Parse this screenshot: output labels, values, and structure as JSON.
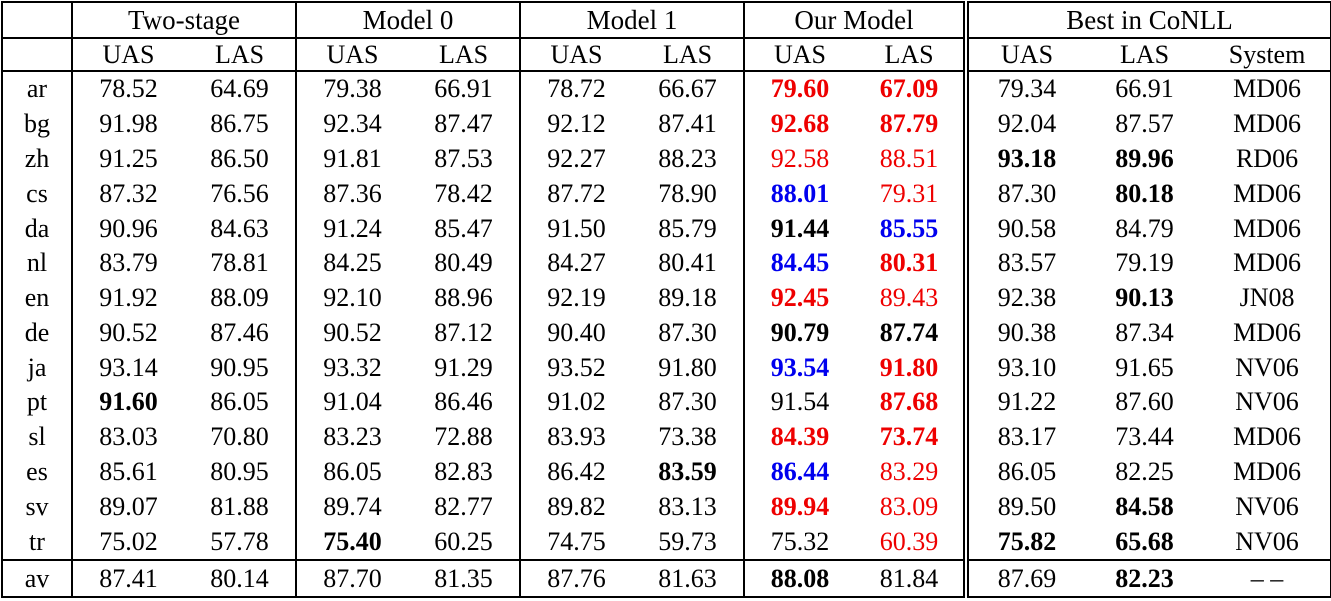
{
  "colors": {
    "highlight_red": "#ee0000",
    "highlight_blue": "#0000ee",
    "text": "#000000",
    "background": "#ffffff"
  },
  "table": {
    "groups": [
      {
        "label": "Two-stage",
        "columns": [
          "UAS",
          "LAS"
        ]
      },
      {
        "label": "Model 0",
        "columns": [
          "UAS",
          "LAS"
        ]
      },
      {
        "label": "Model 1",
        "columns": [
          "UAS",
          "LAS"
        ]
      },
      {
        "label": "Our Model",
        "columns": [
          "UAS",
          "LAS"
        ]
      },
      {
        "label": "Best in CoNLL",
        "columns": [
          "UAS",
          "LAS",
          "System"
        ]
      }
    ],
    "style_legend": {
      "n": "normal black",
      "b": "bold black",
      "r": "red",
      "br": "bold red",
      "bu": "bold blue"
    },
    "rows": [
      {
        "lang": "ar",
        "cells": [
          [
            "78.52",
            "n"
          ],
          [
            "64.69",
            "n"
          ],
          [
            "79.38",
            "n"
          ],
          [
            "66.91",
            "n"
          ],
          [
            "78.72",
            "n"
          ],
          [
            "66.67",
            "n"
          ],
          [
            "79.60",
            "br"
          ],
          [
            "67.09",
            "br"
          ],
          [
            "79.34",
            "n"
          ],
          [
            "66.91",
            "n"
          ],
          [
            "MD06",
            "n"
          ]
        ]
      },
      {
        "lang": "bg",
        "cells": [
          [
            "91.98",
            "n"
          ],
          [
            "86.75",
            "n"
          ],
          [
            "92.34",
            "n"
          ],
          [
            "87.47",
            "n"
          ],
          [
            "92.12",
            "n"
          ],
          [
            "87.41",
            "n"
          ],
          [
            "92.68",
            "br"
          ],
          [
            "87.79",
            "br"
          ],
          [
            "92.04",
            "n"
          ],
          [
            "87.57",
            "n"
          ],
          [
            "MD06",
            "n"
          ]
        ]
      },
      {
        "lang": "zh",
        "cells": [
          [
            "91.25",
            "n"
          ],
          [
            "86.50",
            "n"
          ],
          [
            "91.81",
            "n"
          ],
          [
            "87.53",
            "n"
          ],
          [
            "92.27",
            "n"
          ],
          [
            "88.23",
            "n"
          ],
          [
            "92.58",
            "r"
          ],
          [
            "88.51",
            "r"
          ],
          [
            "93.18",
            "b"
          ],
          [
            "89.96",
            "b"
          ],
          [
            "RD06",
            "n"
          ]
        ]
      },
      {
        "lang": "cs",
        "cells": [
          [
            "87.32",
            "n"
          ],
          [
            "76.56",
            "n"
          ],
          [
            "87.36",
            "n"
          ],
          [
            "78.42",
            "n"
          ],
          [
            "87.72",
            "n"
          ],
          [
            "78.90",
            "n"
          ],
          [
            "88.01",
            "bu"
          ],
          [
            "79.31",
            "r"
          ],
          [
            "87.30",
            "n"
          ],
          [
            "80.18",
            "b"
          ],
          [
            "MD06",
            "n"
          ]
        ]
      },
      {
        "lang": "da",
        "cells": [
          [
            "90.96",
            "n"
          ],
          [
            "84.63",
            "n"
          ],
          [
            "91.24",
            "n"
          ],
          [
            "85.47",
            "n"
          ],
          [
            "91.50",
            "n"
          ],
          [
            "85.79",
            "n"
          ],
          [
            "91.44",
            "b"
          ],
          [
            "85.55",
            "bu"
          ],
          [
            "90.58",
            "n"
          ],
          [
            "84.79",
            "n"
          ],
          [
            "MD06",
            "n"
          ]
        ]
      },
      {
        "lang": "nl",
        "cells": [
          [
            "83.79",
            "n"
          ],
          [
            "78.81",
            "n"
          ],
          [
            "84.25",
            "n"
          ],
          [
            "80.49",
            "n"
          ],
          [
            "84.27",
            "n"
          ],
          [
            "80.41",
            "n"
          ],
          [
            "84.45",
            "bu"
          ],
          [
            "80.31",
            "br"
          ],
          [
            "83.57",
            "n"
          ],
          [
            "79.19",
            "n"
          ],
          [
            "MD06",
            "n"
          ]
        ]
      },
      {
        "lang": "en",
        "cells": [
          [
            "91.92",
            "n"
          ],
          [
            "88.09",
            "n"
          ],
          [
            "92.10",
            "n"
          ],
          [
            "88.96",
            "n"
          ],
          [
            "92.19",
            "n"
          ],
          [
            "89.18",
            "n"
          ],
          [
            "92.45",
            "br"
          ],
          [
            "89.43",
            "r"
          ],
          [
            "92.38",
            "n"
          ],
          [
            "90.13",
            "b"
          ],
          [
            "JN08",
            "n"
          ]
        ]
      },
      {
        "lang": "de",
        "cells": [
          [
            "90.52",
            "n"
          ],
          [
            "87.46",
            "n"
          ],
          [
            "90.52",
            "n"
          ],
          [
            "87.12",
            "n"
          ],
          [
            "90.40",
            "n"
          ],
          [
            "87.30",
            "n"
          ],
          [
            "90.79",
            "b"
          ],
          [
            "87.74",
            "b"
          ],
          [
            "90.38",
            "n"
          ],
          [
            "87.34",
            "n"
          ],
          [
            "MD06",
            "n"
          ]
        ]
      },
      {
        "lang": "ja",
        "cells": [
          [
            "93.14",
            "n"
          ],
          [
            "90.95",
            "n"
          ],
          [
            "93.32",
            "n"
          ],
          [
            "91.29",
            "n"
          ],
          [
            "93.52",
            "n"
          ],
          [
            "91.80",
            "n"
          ],
          [
            "93.54",
            "bu"
          ],
          [
            "91.80",
            "br"
          ],
          [
            "93.10",
            "n"
          ],
          [
            "91.65",
            "n"
          ],
          [
            "NV06",
            "n"
          ]
        ]
      },
      {
        "lang": "pt",
        "cells": [
          [
            "91.60",
            "b"
          ],
          [
            "86.05",
            "n"
          ],
          [
            "91.04",
            "n"
          ],
          [
            "86.46",
            "n"
          ],
          [
            "91.02",
            "n"
          ],
          [
            "87.30",
            "n"
          ],
          [
            "91.54",
            "n"
          ],
          [
            "87.68",
            "br"
          ],
          [
            "91.22",
            "n"
          ],
          [
            "87.60",
            "n"
          ],
          [
            "NV06",
            "n"
          ]
        ]
      },
      {
        "lang": "sl",
        "cells": [
          [
            "83.03",
            "n"
          ],
          [
            "70.80",
            "n"
          ],
          [
            "83.23",
            "n"
          ],
          [
            "72.88",
            "n"
          ],
          [
            "83.93",
            "n"
          ],
          [
            "73.38",
            "n"
          ],
          [
            "84.39",
            "br"
          ],
          [
            "73.74",
            "br"
          ],
          [
            "83.17",
            "n"
          ],
          [
            "73.44",
            "n"
          ],
          [
            "MD06",
            "n"
          ]
        ]
      },
      {
        "lang": "es",
        "cells": [
          [
            "85.61",
            "n"
          ],
          [
            "80.95",
            "n"
          ],
          [
            "86.05",
            "n"
          ],
          [
            "82.83",
            "n"
          ],
          [
            "86.42",
            "n"
          ],
          [
            "83.59",
            "b"
          ],
          [
            "86.44",
            "bu"
          ],
          [
            "83.29",
            "r"
          ],
          [
            "86.05",
            "n"
          ],
          [
            "82.25",
            "n"
          ],
          [
            "MD06",
            "n"
          ]
        ]
      },
      {
        "lang": "sv",
        "cells": [
          [
            "89.07",
            "n"
          ],
          [
            "81.88",
            "n"
          ],
          [
            "89.74",
            "n"
          ],
          [
            "82.77",
            "n"
          ],
          [
            "89.82",
            "n"
          ],
          [
            "83.13",
            "n"
          ],
          [
            "89.94",
            "br"
          ],
          [
            "83.09",
            "r"
          ],
          [
            "89.50",
            "n"
          ],
          [
            "84.58",
            "b"
          ],
          [
            "NV06",
            "n"
          ]
        ]
      },
      {
        "lang": "tr",
        "cells": [
          [
            "75.02",
            "n"
          ],
          [
            "57.78",
            "n"
          ],
          [
            "75.40",
            "b"
          ],
          [
            "60.25",
            "n"
          ],
          [
            "74.75",
            "n"
          ],
          [
            "59.73",
            "n"
          ],
          [
            "75.32",
            "n"
          ],
          [
            "60.39",
            "r"
          ],
          [
            "75.82",
            "b"
          ],
          [
            "65.68",
            "b"
          ],
          [
            "NV06",
            "n"
          ]
        ]
      },
      {
        "lang": "av",
        "average": true,
        "cells": [
          [
            "87.41",
            "n"
          ],
          [
            "80.14",
            "n"
          ],
          [
            "87.70",
            "n"
          ],
          [
            "81.35",
            "n"
          ],
          [
            "87.76",
            "n"
          ],
          [
            "81.63",
            "n"
          ],
          [
            "88.08",
            "b"
          ],
          [
            "81.84",
            "n"
          ],
          [
            "87.69",
            "n"
          ],
          [
            "82.23",
            "b"
          ],
          [
            "– –",
            "n"
          ]
        ]
      }
    ]
  }
}
